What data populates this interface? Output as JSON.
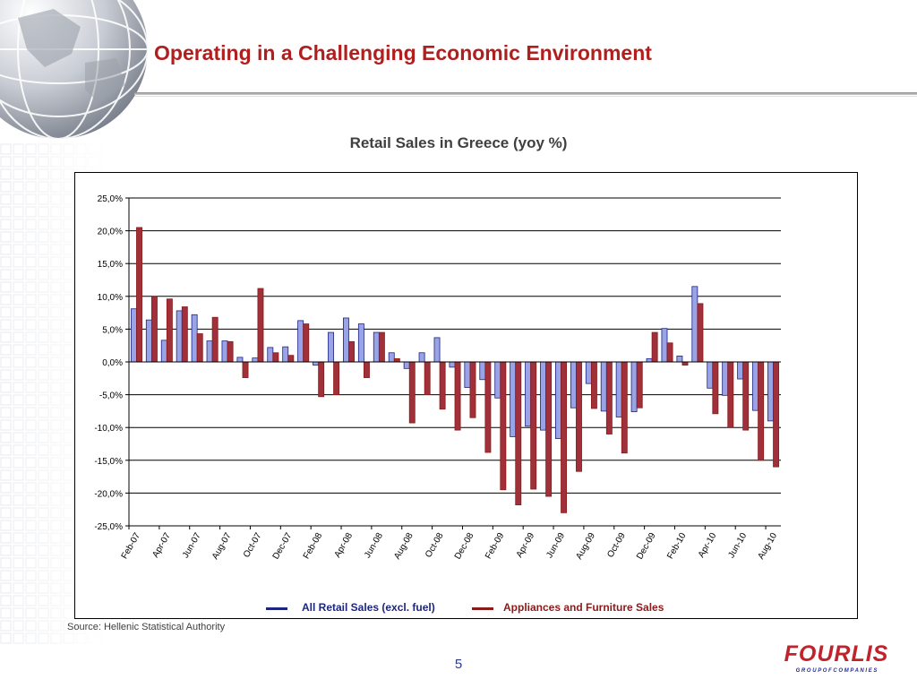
{
  "slide": {
    "title": "Operating in a Challenging Economic Environment",
    "source": "Source: Hellenic Statistical Authority",
    "page_number": "5",
    "logo_text": "FOURLIS",
    "logo_subtext": "G R O U P   O F   C O M P A N I E S"
  },
  "colors": {
    "title": "#b01e1e",
    "series_retail": "#1c2580",
    "series_appliances": "#8b1a1a",
    "bar_retail_fill": "#9aa3e6",
    "bar_appliances_fill": "#a0303a"
  },
  "chart_data": {
    "type": "bar",
    "title": "Retail Sales in Greece (yoy %)",
    "xlabel": "",
    "ylabel": "",
    "ylim": [
      -25,
      25
    ],
    "y_ticks": [
      "25,0%",
      "20,0%",
      "15,0%",
      "10,0%",
      "5,0%",
      "0,0%",
      "-5,0%",
      "-10,0%",
      "-15,0%",
      "-20,0%",
      "-25,0%"
    ],
    "y_tick_values": [
      25,
      20,
      15,
      10,
      5,
      0,
      -5,
      -10,
      -15,
      -20,
      -25
    ],
    "x_tick_labels": [
      "Feb-07",
      "Apr-07",
      "Jun-07",
      "Aug-07",
      "Oct-07",
      "Dec-07",
      "Feb-08",
      "Apr-08",
      "Jun-08",
      "Aug-08",
      "Oct-08",
      "Dec-08",
      "Feb-09",
      "Apr-09",
      "Jun-09",
      "Aug-09",
      "Oct-09",
      "Dec-09",
      "Feb-10",
      "Apr-10",
      "Jun-10",
      "Aug-10"
    ],
    "categories": [
      "Feb-07",
      "Mar-07",
      "Apr-07",
      "May-07",
      "Jun-07",
      "Jul-07",
      "Aug-07",
      "Sep-07",
      "Oct-07",
      "Nov-07",
      "Dec-07",
      "Jan-08",
      "Feb-08",
      "Mar-08",
      "Apr-08",
      "May-08",
      "Jun-08",
      "Jul-08",
      "Aug-08",
      "Sep-08",
      "Oct-08",
      "Nov-08",
      "Dec-08",
      "Jan-09",
      "Feb-09",
      "Mar-09",
      "Apr-09",
      "May-09",
      "Jun-09",
      "Jul-09",
      "Aug-09",
      "Sep-09",
      "Oct-09",
      "Nov-09",
      "Dec-09",
      "Jan-10",
      "Feb-10",
      "Mar-10",
      "Apr-10",
      "May-10",
      "Jun-10",
      "Jul-10",
      "Aug-10"
    ],
    "series": [
      {
        "name": "All Retail Sales (excl. fuel)",
        "values": [
          8.1,
          6.4,
          3.3,
          7.8,
          7.2,
          3.2,
          3.2,
          0.7,
          0.6,
          2.2,
          2.3,
          6.3,
          -0.5,
          4.5,
          6.7,
          5.8,
          4.5,
          1.4,
          -1.0,
          1.4,
          3.7,
          -0.8,
          -3.9,
          -2.7,
          -5.5,
          -11.4,
          -9.8,
          -10.4,
          -11.7,
          -7.0,
          -3.3,
          -7.5,
          -8.4,
          -7.6,
          0.5,
          5.1,
          0.9,
          11.5,
          -4.0,
          -5.1,
          -2.6,
          -7.4,
          -9.0
        ]
      },
      {
        "name": "Appliances and Furniture Sales",
        "values": [
          20.5,
          10.0,
          9.6,
          8.4,
          4.3,
          6.8,
          3.1,
          -2.4,
          11.2,
          1.4,
          1.0,
          5.8,
          -5.3,
          -5.0,
          3.1,
          -2.4,
          4.5,
          0.5,
          -9.3,
          -5.0,
          -7.2,
          -10.4,
          -8.5,
          -13.8,
          -19.5,
          -21.8,
          -19.4,
          -20.5,
          -23.0,
          -16.7,
          -7.1,
          -11.0,
          -13.9,
          -7.0,
          4.5,
          2.9,
          -0.5,
          8.9,
          -7.9,
          -10.0,
          -10.4,
          -15.0,
          -16.0
        ]
      }
    ],
    "legend_position": "bottom",
    "grid": true
  }
}
